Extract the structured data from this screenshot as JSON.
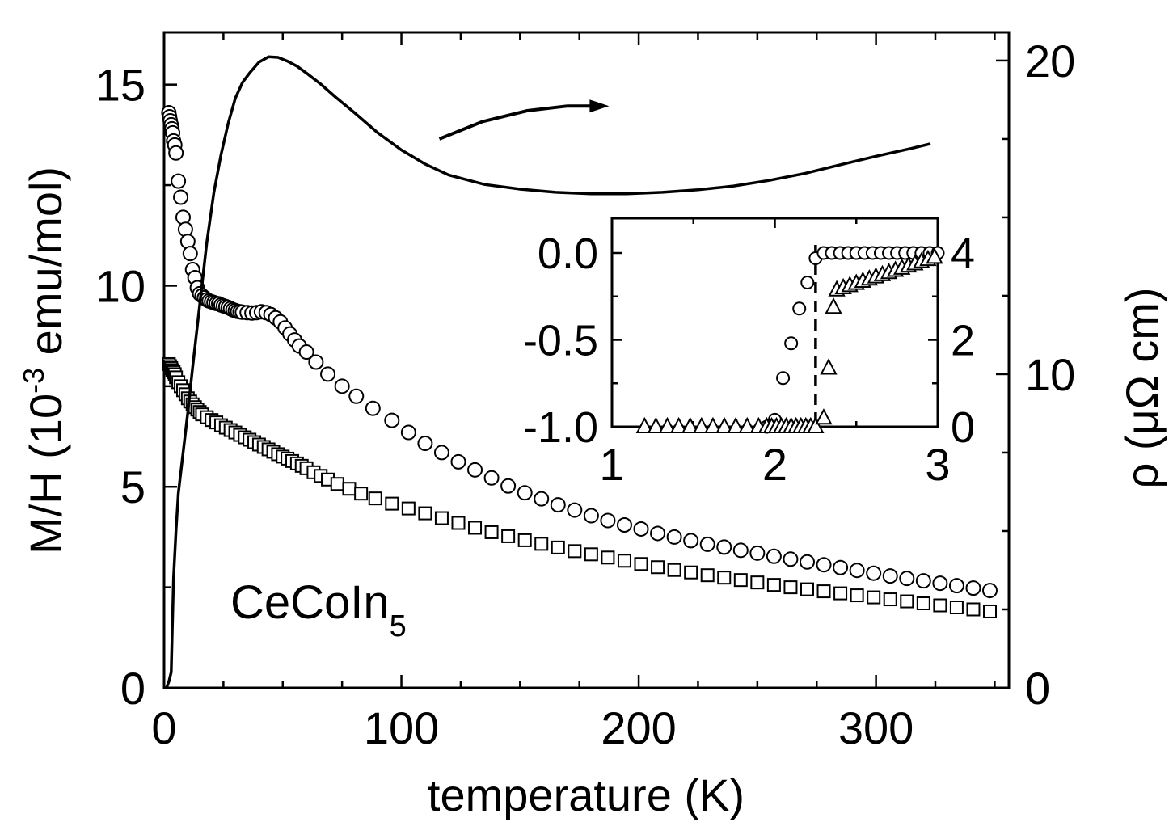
{
  "chart_data": {
    "type": "scatter",
    "xlabel": "temperature (K)",
    "ylabel_base": "M/H (10",
    "ylabel_exp": "-3",
    "ylabel_rest": " emu/mol)",
    "y2label": "ρ (μΩ cm)",
    "sample_label_base": "CeCoIn",
    "sample_label_sub": "5",
    "xlim": [
      0,
      356
    ],
    "ylim": [
      0,
      16.3
    ],
    "y2lim": [
      0,
      20.9
    ],
    "xticks": [
      "0",
      "100",
      "200",
      "300"
    ],
    "yticks": [
      "0",
      "5",
      "10",
      "15"
    ],
    "y2ticks": [
      "0",
      "10",
      "20"
    ],
    "grid": false,
    "series": [
      {
        "marker": "circle",
        "axis": "left",
        "x": [
          2,
          2.3,
          2.6,
          3,
          3.3,
          3.6,
          4,
          4.5,
          5,
          6,
          7,
          8,
          9,
          10,
          11,
          12,
          13,
          14,
          15,
          16,
          17,
          18,
          19,
          20,
          21,
          22,
          23,
          24,
          25,
          26,
          27,
          28,
          29,
          30,
          31,
          32,
          33,
          35,
          37,
          39,
          41,
          43,
          45,
          47,
          49,
          51,
          53,
          55,
          57,
          60,
          64,
          69,
          75,
          81,
          88,
          96,
          103,
          110,
          117,
          124,
          131,
          138,
          145,
          152,
          159,
          166,
          173,
          180,
          187,
          194,
          201,
          208,
          215,
          222,
          229,
          236,
          243,
          250,
          257,
          264,
          271,
          278,
          285,
          292,
          299,
          306,
          313,
          320,
          327,
          334,
          341,
          348
        ],
        "y": [
          14.3,
          14.2,
          14.1,
          14.0,
          13.9,
          13.8,
          13.6,
          13.5,
          13.3,
          12.6,
          12.2,
          11.7,
          11.4,
          11.1,
          10.8,
          10.4,
          10.2,
          9.95,
          9.8,
          9.75,
          9.7,
          9.65,
          9.62,
          9.6,
          9.58,
          9.56,
          9.55,
          9.52,
          9.5,
          9.48,
          9.46,
          9.43,
          9.4,
          9.38,
          9.36,
          9.35,
          9.34,
          9.33,
          9.32,
          9.33,
          9.35,
          9.33,
          9.28,
          9.2,
          9.1,
          8.95,
          8.8,
          8.65,
          8.5,
          8.35,
          8.1,
          7.8,
          7.5,
          7.25,
          6.95,
          6.65,
          6.35,
          6.08,
          5.85,
          5.62,
          5.42,
          5.22,
          5.02,
          4.85,
          4.7,
          4.55,
          4.42,
          4.28,
          4.16,
          4.05,
          3.95,
          3.84,
          3.75,
          3.66,
          3.57,
          3.5,
          3.42,
          3.35,
          3.27,
          3.2,
          3.13,
          3.06,
          2.99,
          2.92,
          2.85,
          2.78,
          2.72,
          2.66,
          2.6,
          2.54,
          2.48,
          2.42
        ]
      },
      {
        "marker": "square",
        "axis": "left",
        "x": [
          2,
          2.5,
          3,
          3.5,
          4,
          4.5,
          5,
          6,
          7,
          8,
          9,
          10,
          11,
          12,
          13,
          14,
          15,
          16,
          18,
          20,
          22,
          24,
          26,
          28,
          30,
          32,
          34,
          36,
          38,
          40,
          42,
          44,
          46,
          48,
          50,
          52,
          54,
          56,
          58,
          60,
          63,
          66,
          69,
          73,
          78,
          83,
          89,
          96,
          103,
          110,
          117,
          124,
          131,
          138,
          145,
          152,
          159,
          166,
          173,
          180,
          187,
          194,
          201,
          208,
          215,
          222,
          229,
          236,
          243,
          250,
          257,
          264,
          271,
          278,
          285,
          292,
          299,
          306,
          313,
          320,
          327,
          334,
          341,
          348
        ],
        "y": [
          8.05,
          8.0,
          7.95,
          7.9,
          7.85,
          7.8,
          7.72,
          7.6,
          7.5,
          7.4,
          7.3,
          7.2,
          7.12,
          7.05,
          6.98,
          6.92,
          6.86,
          6.8,
          6.73,
          6.66,
          6.6,
          6.53,
          6.47,
          6.41,
          6.35,
          6.29,
          6.23,
          6.17,
          6.11,
          6.05,
          5.99,
          5.93,
          5.87,
          5.81,
          5.75,
          5.7,
          5.64,
          5.58,
          5.52,
          5.46,
          5.36,
          5.27,
          5.18,
          5.07,
          4.95,
          4.83,
          4.71,
          4.58,
          4.46,
          4.34,
          4.22,
          4.1,
          3.98,
          3.87,
          3.77,
          3.67,
          3.58,
          3.49,
          3.4,
          3.32,
          3.24,
          3.16,
          3.08,
          3.0,
          2.93,
          2.87,
          2.8,
          2.74,
          2.68,
          2.62,
          2.56,
          2.5,
          2.45,
          2.4,
          2.35,
          2.3,
          2.25,
          2.2,
          2.15,
          2.1,
          2.05,
          2.0,
          1.95,
          1.9
        ]
      },
      {
        "marker": "line",
        "axis": "right",
        "units": "μΩ cm",
        "x": [
          1,
          2,
          3,
          4,
          5,
          6,
          8,
          10,
          12,
          15,
          18,
          21,
          24,
          27,
          30,
          33,
          36,
          40,
          44,
          48,
          52,
          56,
          60,
          66,
          72,
          80,
          90,
          100,
          110,
          120,
          135,
          150,
          165,
          180,
          195,
          210,
          225,
          240,
          255,
          270,
          285,
          300,
          315,
          323
        ],
        "y": [
          0,
          0.2,
          0.5,
          3.5,
          5.0,
          6.2,
          7.5,
          8.8,
          10.2,
          12.2,
          14.2,
          15.8,
          17.0,
          18.0,
          18.8,
          19.3,
          19.6,
          19.95,
          20.12,
          20.1,
          19.98,
          19.82,
          19.6,
          19.25,
          18.85,
          18.35,
          17.7,
          17.15,
          16.7,
          16.35,
          16.05,
          15.9,
          15.8,
          15.75,
          15.75,
          15.8,
          15.88,
          16.0,
          16.18,
          16.4,
          16.68,
          16.95,
          17.2,
          17.35
        ]
      }
    ],
    "annotations": [
      {
        "type": "arrow",
        "text": "",
        "points_to": "right axis",
        "x": [
          116,
          134,
          153,
          170,
          180
        ],
        "y_right": [
          17.5,
          18.05,
          18.4,
          18.55,
          18.55
        ]
      }
    ],
    "inset": {
      "xlim": [
        1,
        3
      ],
      "ylim": [
        -1.0,
        0.2
      ],
      "y2lim": [
        0,
        4.8
      ],
      "xticks": [
        "1",
        "2",
        "3"
      ],
      "yticks": [
        "0.0",
        "-0.5",
        "-1.0"
      ],
      "y2ticks": [
        "0",
        "2",
        "4"
      ],
      "vline_x": 2.25,
      "series": [
        {
          "marker": "circle",
          "axis": "left",
          "x": [
            1.95,
            2.0,
            2.05,
            2.1,
            2.15,
            2.2,
            2.25,
            2.3,
            2.35,
            2.4,
            2.45,
            2.5,
            2.55,
            2.6,
            2.65,
            2.7,
            2.75,
            2.8,
            2.85,
            2.9,
            2.95,
            3.0
          ],
          "y": [
            -1.0,
            -0.96,
            -0.72,
            -0.52,
            -0.32,
            -0.17,
            -0.03,
            0.0,
            0.0,
            0.0,
            0.0,
            0.0,
            0.0,
            0.0,
            0.0,
            0.0,
            0.0,
            0.0,
            0.0,
            0.0,
            0.0,
            0.0
          ]
        },
        {
          "marker": "triangle",
          "axis": "right",
          "x": [
            1.2,
            1.27,
            1.34,
            1.41,
            1.48,
            1.55,
            1.62,
            1.69,
            1.76,
            1.83,
            1.9,
            1.95,
            1.98,
            2.01,
            2.04,
            2.07,
            2.1,
            2.13,
            2.16,
            2.19,
            2.22,
            2.25,
            2.3,
            2.33,
            2.36,
            2.38,
            2.42,
            2.46,
            2.5,
            2.54,
            2.58,
            2.62,
            2.66,
            2.7,
            2.74,
            2.78,
            2.82,
            2.86,
            2.9,
            2.94,
            2.98
          ],
          "y": [
            0,
            0,
            0,
            0,
            0,
            0,
            0,
            0,
            0,
            0,
            0,
            0,
            0,
            0,
            0,
            0,
            0,
            0,
            0,
            0,
            0,
            0,
            0.2,
            1.35,
            2.75,
            3.15,
            3.2,
            3.25,
            3.3,
            3.35,
            3.4,
            3.45,
            3.5,
            3.55,
            3.6,
            3.65,
            3.7,
            3.75,
            3.8,
            3.85,
            3.9
          ]
        }
      ]
    }
  }
}
